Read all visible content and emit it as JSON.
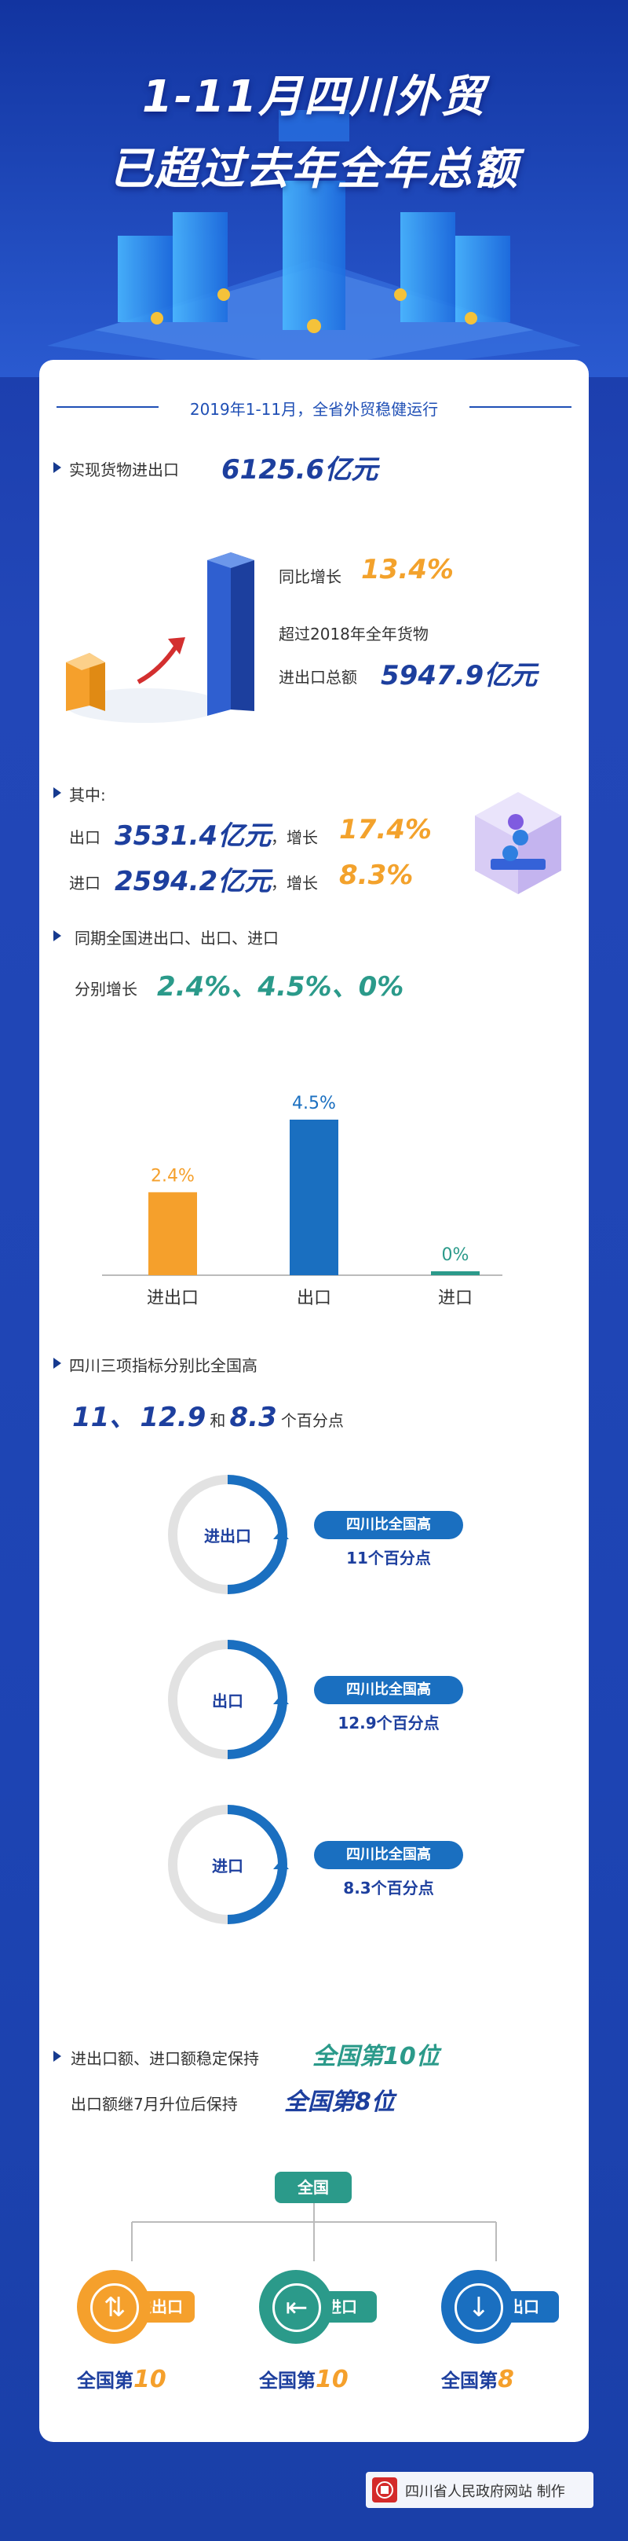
{
  "hero": {
    "title_line1": "1-11月四川外贸",
    "title_line2": "已超过去年全年总额"
  },
  "section_header": "2019年1-11月，全省外贸稳健运行",
  "total": {
    "prefix": "实现货物进出口",
    "value": "6125.6亿元",
    "growth_label": "同比增长",
    "growth_value": "13.4%",
    "exceed_line1": "超过2018年全年货物",
    "exceed_line2_label": "进出口总额",
    "exceed_value": "5947.9亿元"
  },
  "detail": {
    "heading": "其中:",
    "export_label": "出口",
    "export_value": "3531.4亿元",
    "export_comma": "，增长",
    "export_growth": "17.4%",
    "import_label": "进口",
    "import_value": "2594.2亿元",
    "import_comma": "，增长",
    "import_growth": "8.3%"
  },
  "national": {
    "heading": "同期全国进出口、出口、进口",
    "growth_label": "分别增长",
    "growth_values": "2.4%、4.5%、0%"
  },
  "chart_data": {
    "type": "bar",
    "categories": [
      "进出口",
      "出口",
      "进口"
    ],
    "values": [
      2.4,
      4.5,
      0
    ],
    "value_labels": [
      "2.4%",
      "4.5%",
      "0%"
    ],
    "colors": [
      "#f5a02c",
      "#1a6fc0",
      "#2b9a8a"
    ],
    "ylim": [
      0,
      5
    ],
    "title": "",
    "xlabel": "",
    "ylabel": ""
  },
  "higher": {
    "heading": "四川三项指标分别比全国高",
    "val1": "11、",
    "val2": "12.9",
    "and": "和",
    "val3": "8.3",
    "unit": "个百分点"
  },
  "rings": [
    {
      "label": "进出口",
      "pill": "四川比全国高",
      "value": "11个百分点"
    },
    {
      "label": "出口",
      "pill": "四川比全国高",
      "value": "12.9个百分点"
    },
    {
      "label": "进口",
      "pill": "四川比全国高",
      "value": "8.3个百分点"
    }
  ],
  "ranking": {
    "line1_label": "进出口额、进口额稳定保持",
    "line1_value": "全国第10位",
    "line2_label": "出口额继7月升位后保持",
    "line2_value": "全国第8位",
    "root": "全国",
    "items": [
      {
        "tag": "进出口",
        "rank_prefix": "全国第",
        "rank_num": "10",
        "color": "#f5a02c",
        "icon": "swap-arrows-icon"
      },
      {
        "tag": "进口",
        "rank_prefix": "全国第",
        "rank_num": "10",
        "color": "#2b9a8a",
        "icon": "import-arrow-icon"
      },
      {
        "tag": "出口",
        "rank_prefix": "全国第",
        "rank_num": "8",
        "color": "#1a6fc0",
        "icon": "export-arrow-icon"
      }
    ]
  },
  "footer": {
    "text": "四川省人民政府网站 制作"
  }
}
